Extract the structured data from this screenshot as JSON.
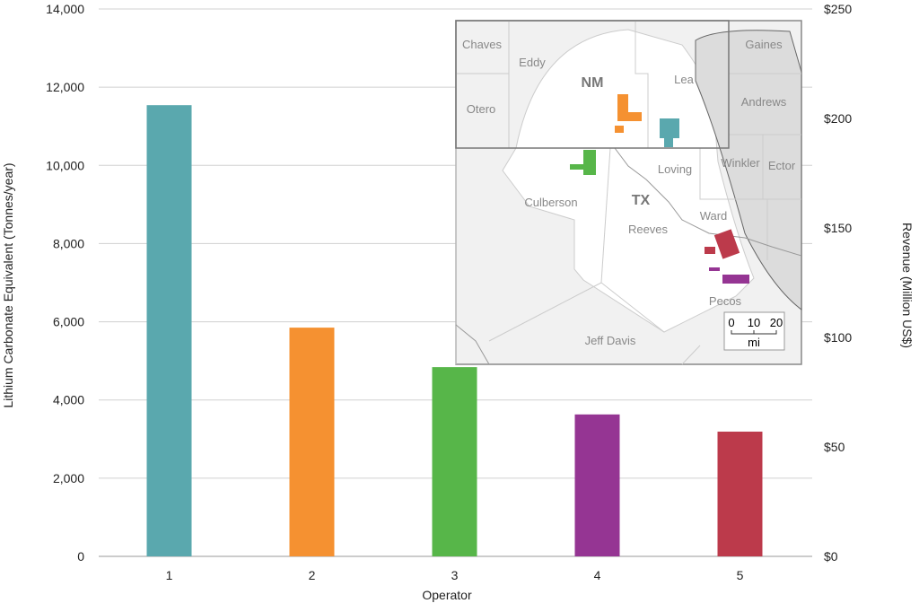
{
  "chart_data": {
    "type": "bar",
    "title": "",
    "xlabel": "Operator",
    "ylabel": "Lithium Carbonate Equivalent (Tonnes/year)",
    "y2label": "Revenue (Million US$)",
    "categories": [
      "1",
      "2",
      "3",
      "4",
      "5"
    ],
    "values": [
      11540,
      5850,
      4840,
      3630,
      3190
    ],
    "colors": [
      "#5aa8ae",
      "#f59131",
      "#57b649",
      "#953593",
      "#bc3a4b"
    ],
    "ylim": [
      0,
      14000
    ],
    "yticks": [
      0,
      2000,
      4000,
      6000,
      8000,
      10000,
      12000,
      14000
    ],
    "ytick_labels": [
      "0",
      "2,000",
      "4,000",
      "6,000",
      "8,000",
      "10,000",
      "12,000",
      "14,000"
    ],
    "y2lim": [
      0,
      250
    ],
    "y2tick_labels": [
      "$0",
      "$50",
      "$100",
      "$150",
      "$200",
      "$250"
    ],
    "grid": true
  },
  "map": {
    "counties": [
      "Chaves",
      "Eddy",
      "Otero",
      "Lea",
      "Gaines",
      "Andrews",
      "Loving",
      "Winkler",
      "Ector",
      "Culberson",
      "Reeves",
      "Ward",
      "Pecos",
      "Jeff Davis"
    ],
    "states": [
      "NM",
      "TX"
    ],
    "scale": {
      "ticks": [
        "0",
        "10",
        "20"
      ],
      "unit": "mi"
    }
  }
}
